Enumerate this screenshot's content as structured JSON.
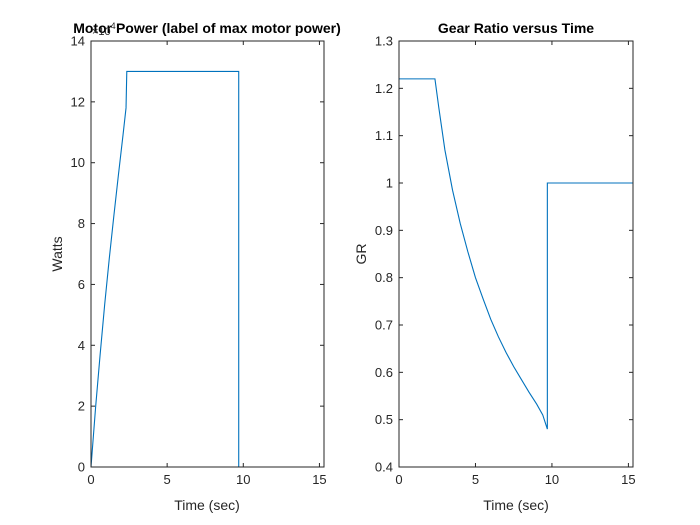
{
  "chart_data": [
    {
      "type": "line",
      "title": "Motor Power (label of max motor power)",
      "xlabel": "Time (sec)",
      "ylabel": "Watts",
      "xlim": [
        0,
        15.3
      ],
      "ylim": [
        0,
        140000
      ],
      "y_exponent_label": "×10",
      "y_exponent_power": "4",
      "x_ticks": [
        0,
        5,
        10,
        15
      ],
      "x_tick_labels": [
        "0",
        "5",
        "10",
        "15"
      ],
      "y_ticks": [
        0,
        20000,
        40000,
        60000,
        80000,
        100000,
        120000,
        140000
      ],
      "y_tick_labels": [
        "0",
        "2",
        "4",
        "6",
        "8",
        "10",
        "12",
        "14"
      ],
      "grid": false,
      "series": [
        {
          "color": "#0072bd",
          "x": [
            0,
            0.3,
            0.6,
            0.9,
            1.2,
            1.5,
            1.8,
            2.1,
            2.3,
            2.35,
            9.7,
            9.7,
            15.3
          ],
          "y": [
            0,
            19500,
            37000,
            53500,
            68500,
            82500,
            96000,
            109000,
            118000,
            130000,
            130000,
            0,
            0
          ]
        }
      ]
    },
    {
      "type": "line",
      "title": "Gear Ratio versus Time",
      "xlabel": "Time (sec)",
      "ylabel": "GR",
      "xlim": [
        0,
        15.3
      ],
      "ylim": [
        0.4,
        1.3
      ],
      "x_ticks": [
        0,
        5,
        10,
        15
      ],
      "x_tick_labels": [
        "0",
        "5",
        "10",
        "15"
      ],
      "y_ticks": [
        0.4,
        0.5,
        0.6,
        0.7,
        0.8,
        0.9,
        1.0,
        1.1,
        1.2,
        1.3
      ],
      "y_tick_labels": [
        "0.4",
        "0.5",
        "0.6",
        "0.7",
        "0.8",
        "0.9",
        "1",
        "1.1",
        "1.2",
        "1.3"
      ],
      "grid": false,
      "series": [
        {
          "color": "#0072bd",
          "x": [
            0,
            2.35,
            2.6,
            3.0,
            3.5,
            4.0,
            4.5,
            5.0,
            5.5,
            6.0,
            6.5,
            7.0,
            7.5,
            8.0,
            8.5,
            9.0,
            9.4,
            9.7,
            9.7,
            15.3
          ],
          "y": [
            1.22,
            1.22,
            1.16,
            1.07,
            0.985,
            0.915,
            0.855,
            0.8,
            0.755,
            0.712,
            0.675,
            0.642,
            0.612,
            0.585,
            0.558,
            0.533,
            0.51,
            0.48,
            1.0,
            1.0
          ]
        }
      ]
    }
  ]
}
